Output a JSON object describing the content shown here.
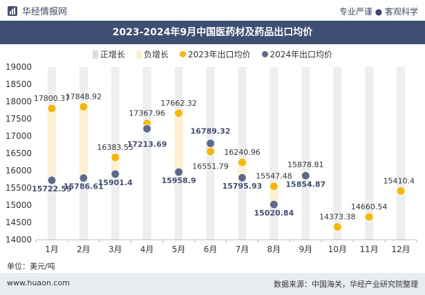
{
  "header": {
    "brand": "华经情报网",
    "tagline": "专业严谨 ● 客观科学"
  },
  "title": "2023-2024年9月中国医药材及药品出口均价",
  "legend": {
    "pos_growth": "正增长",
    "neg_growth": "负增长",
    "series_2023": "2023年出口均价",
    "series_2024": "2024年出口均价"
  },
  "unit_label": "单位：美元/吨",
  "footer": {
    "site": "www.huaon.com",
    "source": "数据来源：中国海关，华经产业研究院整理"
  },
  "colors": {
    "title_bg": "#3f4f74",
    "pos_bar": "#d9dce3",
    "neg_bar": "#fdefcf",
    "series_2023": "#f8b700",
    "series_2024": "#5d6a8b"
  },
  "chart_data": {
    "type": "scatter",
    "categories": [
      "1月",
      "2月",
      "3月",
      "4月",
      "5月",
      "6月",
      "7月",
      "8月",
      "9月",
      "10月",
      "11月",
      "12月"
    ],
    "ylim": [
      14000,
      19000
    ],
    "yticks": [
      14000,
      14500,
      15000,
      15500,
      16000,
      16500,
      17000,
      17500,
      18000,
      18500,
      19000
    ],
    "series": [
      {
        "name": "2023年出口均价",
        "values": [
          17800.37,
          17848.92,
          16383.55,
          17367.96,
          17662.32,
          16551.79,
          16240.96,
          15547.48,
          15878.81,
          14373.38,
          14660.54,
          15410.4
        ]
      },
      {
        "name": "2024年出口均价",
        "values": [
          15722.59,
          15786.61,
          15901.4,
          17213.69,
          15958.9,
          16789.32,
          15795.93,
          15020.84,
          15854.87,
          null,
          null,
          null
        ]
      }
    ],
    "growth": [
      "negative",
      "negative",
      "negative",
      "negative",
      "negative",
      "positive",
      "negative",
      "negative",
      "negative",
      "none",
      "none",
      "none"
    ],
    "label_2023": [
      "17800.37",
      "17848.92",
      "16383.55",
      "17367.96",
      "17662.32",
      "16551.79",
      "16240.96",
      "15547.48",
      "15878.81",
      "14373.38",
      "14660.54",
      "15410.4"
    ],
    "label_2024": [
      "15722.59",
      "15786.61",
      "15901.4",
      "17213.69",
      "15958.9",
      "16789.32",
      "15795.93",
      "15020.84",
      "15854.87"
    ]
  }
}
